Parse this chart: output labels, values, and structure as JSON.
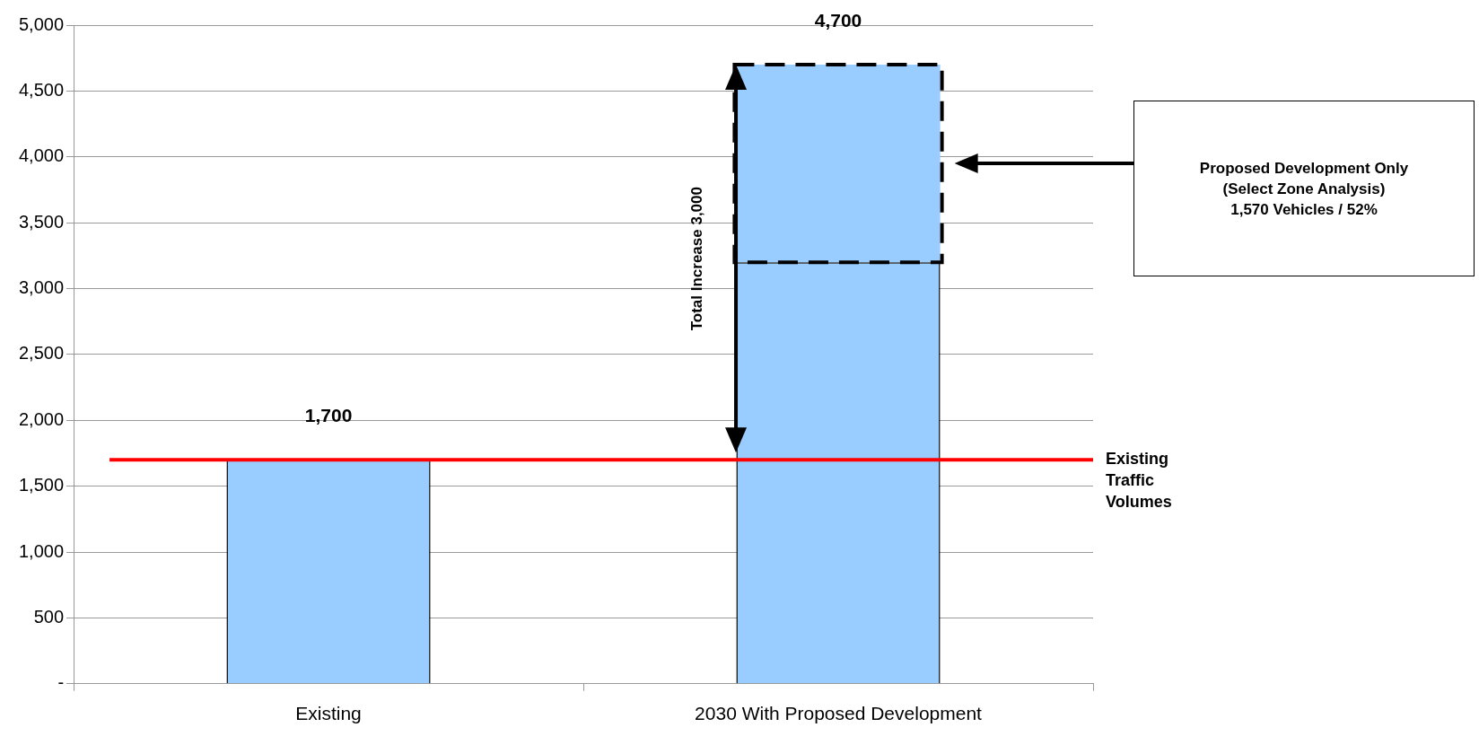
{
  "chart_data": {
    "type": "bar",
    "categories": [
      "Existing",
      "2030 With Proposed Development"
    ],
    "stacked": true,
    "series": [
      {
        "color": "#99ccff",
        "values": [
          1700,
          3200
        ]
      },
      {
        "color": "#99ccff",
        "values": [
          null,
          1500
        ],
        "line_style": "dashed"
      }
    ],
    "value_labels": [
      "1,700",
      "4,700"
    ],
    "ylim": [
      0,
      5000
    ],
    "yticks": [
      {
        "value": 0,
        "label": "-"
      },
      {
        "value": 500,
        "label": "500"
      },
      {
        "value": 1000,
        "label": "1,000"
      },
      {
        "value": 1500,
        "label": "1,500"
      },
      {
        "value": 2000,
        "label": "2,000"
      },
      {
        "value": 2500,
        "label": "2,500"
      },
      {
        "value": 3000,
        "label": "3,000"
      },
      {
        "value": 3500,
        "label": "3,500"
      },
      {
        "value": 4000,
        "label": "4,000"
      },
      {
        "value": 4500,
        "label": "4,500"
      },
      {
        "value": 5000,
        "label": "5,000"
      }
    ],
    "grid": "y",
    "ref_lines": [
      {
        "axis": "y",
        "value": 1700,
        "label": "Existing Traffic Volumes",
        "color": "#ff0000"
      }
    ],
    "annotations": [
      "Proposed Development Only\n(Select Zone Analysis)\n1,570 Vehicles / 52%",
      "Total Increase 3,000"
    ]
  }
}
